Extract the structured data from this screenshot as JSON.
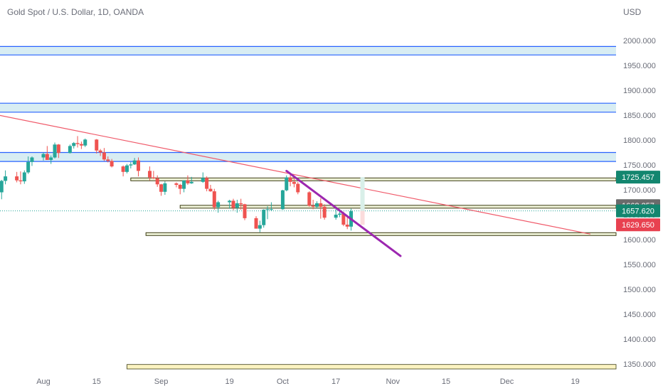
{
  "header": {
    "title": "Gold Spot / U.S. Dollar, 1D, OANDA"
  },
  "colors": {
    "up": "#26a69a",
    "down": "#ef5350",
    "trendline": "#f05a6a",
    "purple": "#9c27b0",
    "zone_fill": "#d8edf3",
    "zone_border": "#2962ff",
    "level_fill": "#eef2d7",
    "level_border": "#3c3c14",
    "support_fill": "#fbf3c1"
  },
  "chart_data": {
    "type": "candlestick",
    "title": "Gold Spot / U.S. Dollar, 1D, OANDA",
    "currency": "USD",
    "ylim": [
      1330,
      2045
    ],
    "y_ticks": [
      2000,
      1950,
      1900,
      1850,
      1800,
      1750,
      1700,
      1650,
      1600,
      1550,
      1500,
      1450,
      1400,
      1350
    ],
    "y_tick_labels": [
      "2000.000",
      "1950.000",
      "1900.000",
      "1850.000",
      "1800.000",
      "1750.000",
      "1700.000",
      "1650.000",
      "1600.000",
      "1550.000",
      "1500.000",
      "1450.000",
      "1400.000",
      "1350.000"
    ],
    "x_ticks": [
      {
        "date": "2022-08-01",
        "label": "Aug"
      },
      {
        "date": "2022-08-15",
        "label": "15"
      },
      {
        "date": "2022-09-01",
        "label": "Sep"
      },
      {
        "date": "2022-09-19",
        "label": "19"
      },
      {
        "date": "2022-10-03",
        "label": "Oct"
      },
      {
        "date": "2022-10-17",
        "label": "17"
      },
      {
        "date": "2022-11-01",
        "label": "Nov"
      },
      {
        "date": "2022-11-15",
        "label": "15"
      },
      {
        "date": "2022-12-01",
        "label": "Dec"
      },
      {
        "date": "2022-12-19",
        "label": "19"
      }
    ],
    "candles": [
      [
        "2022-07-21",
        1695,
        1720,
        1681,
        1718
      ],
      [
        "2022-07-22",
        1718,
        1739,
        1711,
        1727
      ],
      [
        "2022-07-25",
        1727,
        1736,
        1715,
        1719
      ],
      [
        "2022-07-26",
        1719,
        1737,
        1711,
        1717
      ],
      [
        "2022-07-27",
        1717,
        1739,
        1712,
        1735
      ],
      [
        "2022-07-28",
        1735,
        1767,
        1732,
        1756
      ],
      [
        "2022-07-29",
        1756,
        1767,
        1748,
        1765
      ],
      [
        "2022-08-01",
        1765,
        1775,
        1759,
        1772
      ],
      [
        "2022-08-02",
        1772,
        1788,
        1760,
        1760
      ],
      [
        "2022-08-03",
        1760,
        1769,
        1752,
        1765
      ],
      [
        "2022-08-04",
        1765,
        1795,
        1763,
        1791
      ],
      [
        "2022-08-05",
        1791,
        1792,
        1764,
        1774
      ],
      [
        "2022-08-08",
        1774,
        1791,
        1773,
        1788
      ],
      [
        "2022-08-09",
        1788,
        1796,
        1783,
        1794
      ],
      [
        "2022-08-10",
        1794,
        1808,
        1785,
        1792
      ],
      [
        "2022-08-11",
        1792,
        1797,
        1782,
        1789
      ],
      [
        "2022-08-12",
        1789,
        1803,
        1786,
        1801
      ],
      [
        "2022-08-15",
        1801,
        1802,
        1773,
        1779
      ],
      [
        "2022-08-16",
        1779,
        1782,
        1768,
        1775
      ],
      [
        "2022-08-17",
        1775,
        1784,
        1758,
        1761
      ],
      [
        "2022-08-18",
        1761,
        1767,
        1755,
        1758
      ],
      [
        "2022-08-19",
        1758,
        1762,
        1745,
        1747
      ],
      [
        "2022-08-22",
        1747,
        1749,
        1727,
        1736
      ],
      [
        "2022-08-23",
        1736,
        1752,
        1733,
        1749
      ],
      [
        "2022-08-24",
        1749,
        1756,
        1743,
        1751
      ],
      [
        "2022-08-25",
        1751,
        1764,
        1750,
        1759
      ],
      [
        "2022-08-26",
        1759,
        1765,
        1727,
        1738
      ],
      [
        "2022-08-29",
        1738,
        1747,
        1719,
        1725
      ],
      [
        "2022-08-30",
        1725,
        1738,
        1722,
        1723
      ],
      [
        "2022-08-31",
        1723,
        1729,
        1706,
        1711
      ],
      [
        "2022-09-01",
        1711,
        1712,
        1688,
        1696
      ],
      [
        "2022-09-02",
        1696,
        1717,
        1690,
        1713
      ],
      [
        "2022-09-05",
        1713,
        1715,
        1705,
        1710
      ],
      [
        "2022-09-06",
        1710,
        1712,
        1691,
        1702
      ],
      [
        "2022-09-07",
        1702,
        1719,
        1695,
        1719
      ],
      [
        "2022-09-08",
        1719,
        1729,
        1710,
        1713
      ],
      [
        "2022-09-09",
        1713,
        1726,
        1712,
        1716
      ],
      [
        "2022-09-12",
        1716,
        1735,
        1714,
        1724
      ],
      [
        "2022-09-13",
        1724,
        1727,
        1697,
        1702
      ],
      [
        "2022-09-14",
        1702,
        1710,
        1696,
        1697
      ],
      [
        "2022-09-15",
        1697,
        1702,
        1660,
        1665
      ],
      [
        "2022-09-16",
        1665,
        1678,
        1654,
        1675
      ],
      [
        "2022-09-19",
        1675,
        1680,
        1662,
        1678
      ],
      [
        "2022-09-20",
        1678,
        1682,
        1659,
        1664
      ],
      [
        "2022-09-21",
        1664,
        1680,
        1654,
        1673
      ],
      [
        "2022-09-22",
        1673,
        1682,
        1660,
        1671
      ],
      [
        "2022-09-23",
        1671,
        1672,
        1639,
        1643
      ],
      [
        "2022-09-26",
        1643,
        1647,
        1622,
        1622
      ],
      [
        "2022-09-27",
        1622,
        1638,
        1615,
        1629
      ],
      [
        "2022-09-28",
        1629,
        1661,
        1624,
        1660
      ],
      [
        "2022-09-29",
        1660,
        1667,
        1641,
        1661
      ],
      [
        "2022-09-30",
        1661,
        1675,
        1658,
        1661
      ],
      [
        "2022-10-03",
        1661,
        1700,
        1660,
        1699
      ],
      [
        "2022-10-04",
        1699,
        1729,
        1697,
        1725
      ],
      [
        "2022-10-05",
        1725,
        1731,
        1707,
        1716
      ],
      [
        "2022-10-06",
        1716,
        1723,
        1705,
        1712
      ],
      [
        "2022-10-07",
        1712,
        1716,
        1691,
        1695
      ],
      [
        "2022-10-10",
        1695,
        1697,
        1666,
        1668
      ],
      [
        "2022-10-11",
        1668,
        1680,
        1661,
        1666
      ],
      [
        "2022-10-12",
        1666,
        1677,
        1662,
        1673
      ],
      [
        "2022-10-13",
        1673,
        1683,
        1642,
        1666
      ],
      [
        "2022-10-14",
        1666,
        1671,
        1640,
        1644
      ],
      [
        "2022-10-17",
        1644,
        1665,
        1640,
        1650
      ],
      [
        "2022-10-18",
        1650,
        1661,
        1645,
        1652
      ],
      [
        "2022-10-19",
        1652,
        1656,
        1627,
        1630
      ],
      [
        "2022-10-20",
        1630,
        1645,
        1621,
        1626
      ],
      [
        "2022-10-21",
        1626,
        1662,
        1618,
        1657
      ]
    ],
    "trendline": {
      "x1": "2022-07-15",
      "y1": 1858,
      "x2": "2022-12-23",
      "y2": 1611,
      "color": "#f05a6a"
    },
    "purple_line": {
      "x1": "2022-10-04",
      "y1": 1738,
      "x2": "2022-11-03",
      "y2": 1567,
      "color": "#9c27b0"
    },
    "resistance_zones": [
      {
        "from": 1971,
        "to": 1988
      },
      {
        "from": 1856,
        "to": 1874
      },
      {
        "from": 1757,
        "to": 1775
      }
    ],
    "level_lines": [
      {
        "start": "2022-08-24",
        "y": 1721
      },
      {
        "start": "2022-09-06",
        "y": 1666
      },
      {
        "start": "2022-08-28",
        "y": 1611
      }
    ],
    "support_zone": {
      "start": "2022-08-23",
      "from": 1340,
      "to": 1349
    },
    "forecast_bars": [
      {
        "date": "2022-10-24",
        "from": 1657.62,
        "to": 1725.457,
        "color": "#d9efe9"
      },
      {
        "date": "2022-10-24",
        "from": 1629.65,
        "to": 1657.62,
        "color": "#fbdcdc"
      }
    ],
    "current_price": 1657.62,
    "price_labels": [
      {
        "value": 1725.457,
        "text": "1725.457",
        "bg": "#13866f"
      },
      {
        "value": 1668.257,
        "text": "1668.257",
        "bg": "#6b6b6b"
      },
      {
        "value": 1657.62,
        "text": "1657.620",
        "bg": "#13866f"
      },
      {
        "value": 1629.65,
        "text": "1629.650",
        "bg": "#e84150"
      }
    ]
  }
}
